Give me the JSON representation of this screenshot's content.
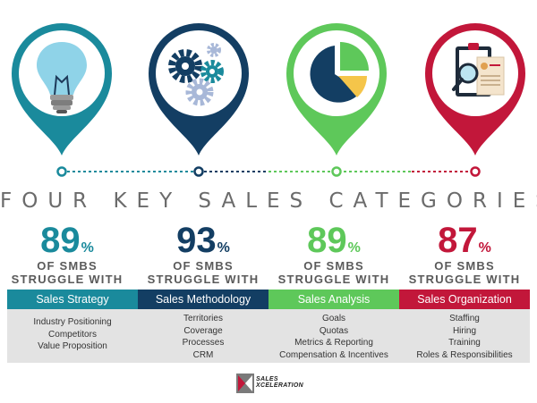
{
  "title": "FOUR KEY SALES CATEGORIES",
  "colors": {
    "teal": "#1a8a9c",
    "navy": "#133e63",
    "green": "#5ec85a",
    "red": "#c2173a",
    "gray_text": "#6b6b6b",
    "list_bg": "#e3e3e3"
  },
  "categories": [
    {
      "icon": "lightbulb-icon",
      "value": "89",
      "percent_sign": "%",
      "struggle_line1": "OF SMBS",
      "struggle_line2": "STRUGGLE WITH",
      "label": "Sales Strategy",
      "color": "#1a8a9c",
      "items": [
        "Industry Positioning",
        "Competitors",
        "Value Proposition"
      ]
    },
    {
      "icon": "gears-icon",
      "value": "93",
      "percent_sign": "%",
      "struggle_line1": "OF SMBS",
      "struggle_line2": "STRUGGLE WITH",
      "label": "Sales Methodology",
      "color": "#133e63",
      "items": [
        "Territories",
        "Coverage",
        "Processes",
        "CRM"
      ]
    },
    {
      "icon": "pie-chart-icon",
      "value": "89",
      "percent_sign": "%",
      "struggle_line1": "OF SMBS",
      "struggle_line2": "STRUGGLE WITH",
      "label": "Sales Analysis",
      "color": "#5ec85a",
      "items": [
        "Goals",
        "Quotas",
        "Metrics & Reporting",
        "Compensation & Incentives"
      ]
    },
    {
      "icon": "clipboard-magnifier-icon",
      "value": "87",
      "percent_sign": "%",
      "struggle_line1": "OF SMBS",
      "struggle_line2": "STRUGGLE WITH",
      "label": "Sales Organization",
      "color": "#c2173a",
      "items": [
        "Staffing",
        "Hiring",
        "Training",
        "Roles & Responsibilities"
      ]
    }
  ],
  "logo": {
    "line1": "SALES",
    "line2": "XCELERATION"
  }
}
